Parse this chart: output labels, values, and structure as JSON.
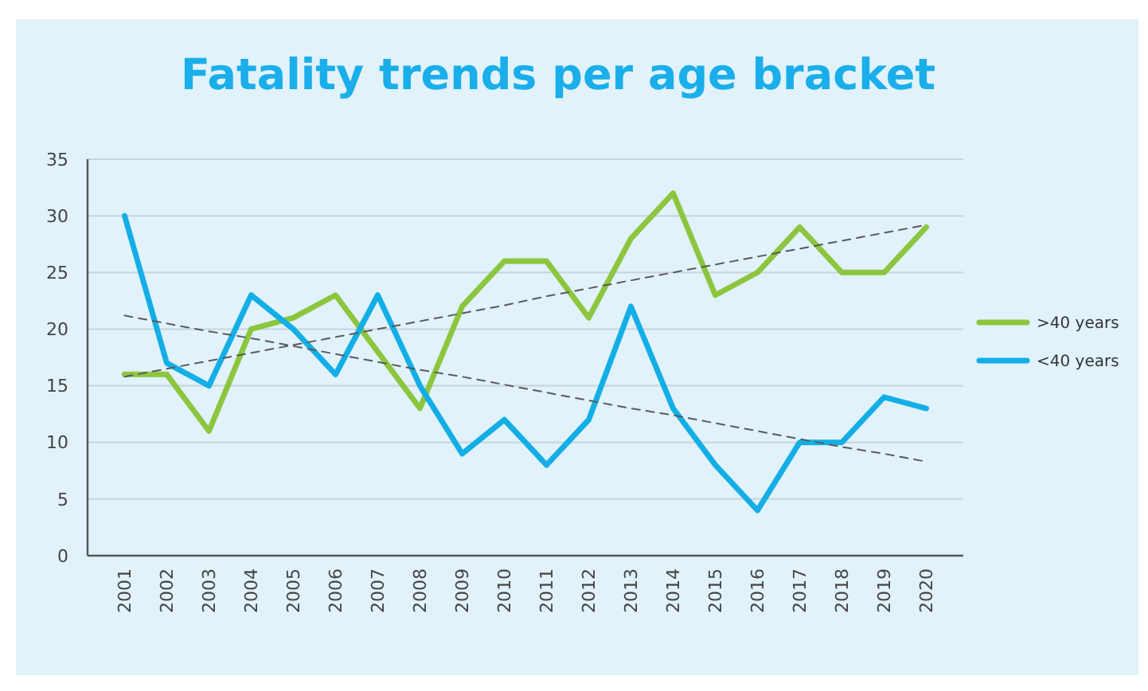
{
  "chart_data": {
    "type": "line",
    "title": "Fatality trends per age bracket",
    "categories": [
      "2001",
      "2002",
      "2003",
      "2004",
      "2005",
      "2006",
      "2007",
      "2008",
      "2009",
      "2010",
      "2011",
      "2012",
      "2013",
      "2014",
      "2015",
      "2016",
      "2017",
      "2018",
      "2019",
      "2020"
    ],
    "series": [
      {
        "name": ">40 years",
        "color": "#8cc63f",
        "values": [
          16,
          16,
          11,
          20,
          21,
          23,
          18,
          13,
          22,
          26,
          26,
          21,
          28,
          32,
          23,
          25,
          29,
          25,
          25,
          29
        ]
      },
      {
        "name": "<40 years",
        "color": "#14aee6",
        "values": [
          30,
          17,
          15,
          23,
          20,
          16,
          23,
          15,
          9,
          12,
          8,
          12,
          22,
          13,
          8,
          4,
          10,
          10,
          14,
          13
        ]
      },
      {
        "type": "line",
        "color": "#5a5a5a",
        "line_style": "dashed",
        "values": [
          15.8,
          16.5,
          17.2,
          17.9,
          18.6,
          19.3,
          20.0,
          20.7,
          21.4,
          22.1,
          22.9,
          23.6,
          24.3,
          25.0,
          25.7,
          26.4,
          27.1,
          27.8,
          28.5,
          29.2
        ]
      },
      {
        "type": "line",
        "color": "#5a5a5a",
        "line_style": "dashed",
        "values": [
          21.2,
          20.5,
          19.8,
          19.2,
          18.5,
          17.8,
          17.1,
          16.4,
          15.8,
          15.1,
          14.4,
          13.7,
          13.0,
          12.4,
          11.7,
          11.0,
          10.3,
          9.6,
          9.0,
          8.3
        ]
      }
    ],
    "ylim": [
      0,
      35
    ],
    "yticks": [
      0,
      5,
      10,
      15,
      20,
      25,
      30,
      35
    ],
    "grid": "y",
    "legend": "right",
    "line_style": "solid",
    "marker": "none"
  }
}
